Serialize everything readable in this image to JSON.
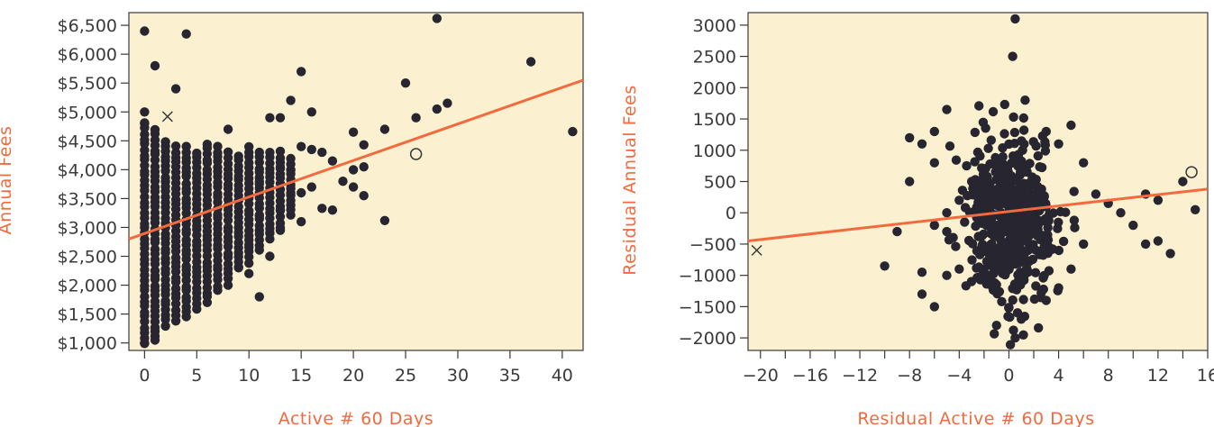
{
  "chart_data": [
    {
      "type": "scatter",
      "title": "",
      "xlabel": "Active # 60 Days",
      "ylabel": "Annual Fees",
      "xlim": [
        -1.5,
        42
      ],
      "ylim": [
        870,
        6720
      ],
      "x_ticks": [
        0,
        5,
        10,
        15,
        20,
        25,
        30,
        35,
        40
      ],
      "x_tick_labels": [
        "0",
        "5",
        "10",
        "15",
        "20",
        "25",
        "30",
        "35",
        "40"
      ],
      "y_ticks": [
        1000,
        1500,
        2000,
        2500,
        3000,
        3500,
        4000,
        4500,
        5000,
        5500,
        6000,
        6500
      ],
      "y_tick_labels": [
        "$1,000",
        "$1,500",
        "$2,000",
        "$2,500",
        "$3,000",
        "$3,500",
        "$4,000",
        "$4,500",
        "$5,000",
        "$5,500",
        "$6,000",
        "$6,500"
      ],
      "background": "#fbf0cf",
      "point_color": "#262530",
      "line_color": "#f26a3d",
      "fit_line": {
        "x": [
          -1.5,
          42
        ],
        "y": [
          2800,
          5550
        ]
      },
      "highlighted": [
        {
          "marker": "x",
          "x": 2.2,
          "y": 4920
        },
        {
          "marker": "o",
          "x": 26,
          "y": 4270
        }
      ],
      "points": [
        [
          0,
          6400
        ],
        [
          1,
          5800
        ],
        [
          4,
          6350
        ],
        [
          3,
          5400
        ],
        [
          28,
          6620
        ],
        [
          37,
          5870
        ],
        [
          41,
          4660
        ],
        [
          25,
          5500
        ],
        [
          15,
          5700
        ],
        [
          29,
          5150
        ],
        [
          28,
          5050
        ],
        [
          26,
          4900
        ],
        [
          14,
          5200
        ],
        [
          16,
          5000
        ],
        [
          23,
          4700
        ],
        [
          21,
          4430
        ],
        [
          20,
          4650
        ],
        [
          17,
          4300
        ],
        [
          18,
          4150
        ],
        [
          20,
          4000
        ],
        [
          19,
          3800
        ],
        [
          21,
          4050
        ],
        [
          20,
          3700
        ],
        [
          21,
          3550
        ],
        [
          18,
          3300
        ],
        [
          17,
          3330
        ],
        [
          23,
          3120
        ],
        [
          16,
          3700
        ],
        [
          15,
          4400
        ],
        [
          16,
          4350
        ],
        [
          15,
          3600
        ],
        [
          15,
          3100
        ],
        [
          12,
          4900
        ],
        [
          13,
          4900
        ],
        [
          14,
          4000
        ],
        [
          14,
          3600
        ],
        [
          13,
          3300
        ],
        [
          13,
          2950
        ],
        [
          12,
          2500
        ],
        [
          11,
          1800
        ],
        [
          12,
          2900
        ],
        [
          13,
          4050
        ],
        [
          11,
          3800
        ],
        [
          11,
          3200
        ],
        [
          10,
          2200
        ],
        [
          10,
          2700
        ],
        [
          9,
          2300
        ],
        [
          8,
          2000
        ],
        [
          8,
          4700
        ],
        [
          5,
          900
        ],
        [
          1,
          1050
        ],
        [
          0,
          1000
        ],
        [
          0,
          5000
        ],
        [
          0,
          4800
        ]
      ],
      "columns": [
        {
          "x": 0,
          "min": 1000,
          "max": 4800
        },
        {
          "x": 1,
          "min": 1100,
          "max": 4700
        },
        {
          "x": 2,
          "min": 1300,
          "max": 4500
        },
        {
          "x": 3,
          "min": 1400,
          "max": 4400
        },
        {
          "x": 4,
          "min": 1450,
          "max": 4400
        },
        {
          "x": 5,
          "min": 1600,
          "max": 4300
        },
        {
          "x": 6,
          "min": 1700,
          "max": 4450
        },
        {
          "x": 7,
          "min": 1900,
          "max": 4400
        },
        {
          "x": 8,
          "min": 2100,
          "max": 4300
        },
        {
          "x": 9,
          "min": 2300,
          "max": 4250
        },
        {
          "x": 10,
          "min": 2400,
          "max": 4400
        },
        {
          "x": 11,
          "min": 2600,
          "max": 4300
        },
        {
          "x": 12,
          "min": 2800,
          "max": 4300
        },
        {
          "x": 13,
          "min": 3000,
          "max": 4300
        },
        {
          "x": 14,
          "min": 3200,
          "max": 4200
        }
      ]
    },
    {
      "type": "scatter",
      "title": "",
      "xlabel": "Residual Active # 60 Days",
      "ylabel": "Residual Annual Fees",
      "xlim": [
        -21,
        16
      ],
      "ylim": [
        -2200,
        3200
      ],
      "x_ticks": [
        -20,
        -16,
        -12,
        -8,
        -4,
        0,
        4,
        8,
        12,
        16
      ],
      "x_tick_labels": [
        "−20",
        "−16",
        "−12",
        "−8",
        "−4",
        "0",
        "4",
        "8",
        "12",
        "16"
      ],
      "y_ticks": [
        -2000,
        -1500,
        -1000,
        -500,
        0,
        500,
        1000,
        1500,
        2000,
        2500,
        3000
      ],
      "y_tick_labels": [
        "−2000",
        "−1500",
        "−1000",
        "−500",
        "0",
        "500",
        "1000",
        "1500",
        "2000",
        "2500",
        "3000"
      ],
      "background": "#fbf0cf",
      "point_color": "#262530",
      "line_color": "#f26a3d",
      "fit_line": {
        "x": [
          -21,
          16
        ],
        "y": [
          -450,
          380
        ]
      },
      "highlighted": [
        {
          "marker": "x",
          "x": -20.3,
          "y": -600
        },
        {
          "marker": "o",
          "x": 14.7,
          "y": 650
        }
      ],
      "points": [
        [
          0.5,
          3100
        ],
        [
          0.3,
          2500
        ],
        [
          1.3,
          1800
        ],
        [
          -5,
          1650
        ],
        [
          -8,
          1200
        ],
        [
          -6,
          1300
        ],
        [
          -7,
          1100
        ],
        [
          -6,
          800
        ],
        [
          -8,
          500
        ],
        [
          -9,
          -300
        ],
        [
          -10,
          -850
        ],
        [
          -7,
          -950
        ],
        [
          -7,
          -1300
        ],
        [
          -6,
          -1500
        ],
        [
          -5,
          -1000
        ],
        [
          -4,
          -900
        ],
        [
          -5,
          -300
        ],
        [
          -6,
          -200
        ],
        [
          -5,
          0
        ],
        [
          -4,
          200
        ],
        [
          -3,
          500
        ],
        [
          3,
          1300
        ],
        [
          4,
          1100
        ],
        [
          5,
          1400
        ],
        [
          6,
          800
        ],
        [
          7,
          300
        ],
        [
          8,
          150
        ],
        [
          9,
          0
        ],
        [
          10,
          -200
        ],
        [
          11,
          300
        ],
        [
          12,
          -450
        ],
        [
          13,
          -650
        ],
        [
          11,
          -500
        ],
        [
          14,
          500
        ],
        [
          15,
          50
        ],
        [
          12,
          200
        ],
        [
          6,
          -500
        ],
        [
          5,
          -900
        ],
        [
          4,
          -1200
        ],
        [
          3,
          -1400
        ],
        [
          0,
          -2200
        ],
        [
          0.5,
          -2000
        ],
        [
          -1,
          -1800
        ],
        [
          1,
          -1700
        ]
      ],
      "cluster": {
        "cx": 0,
        "cy": -100,
        "sx": 1.7,
        "sy": 650,
        "n": 520,
        "seed": 7
      }
    }
  ]
}
